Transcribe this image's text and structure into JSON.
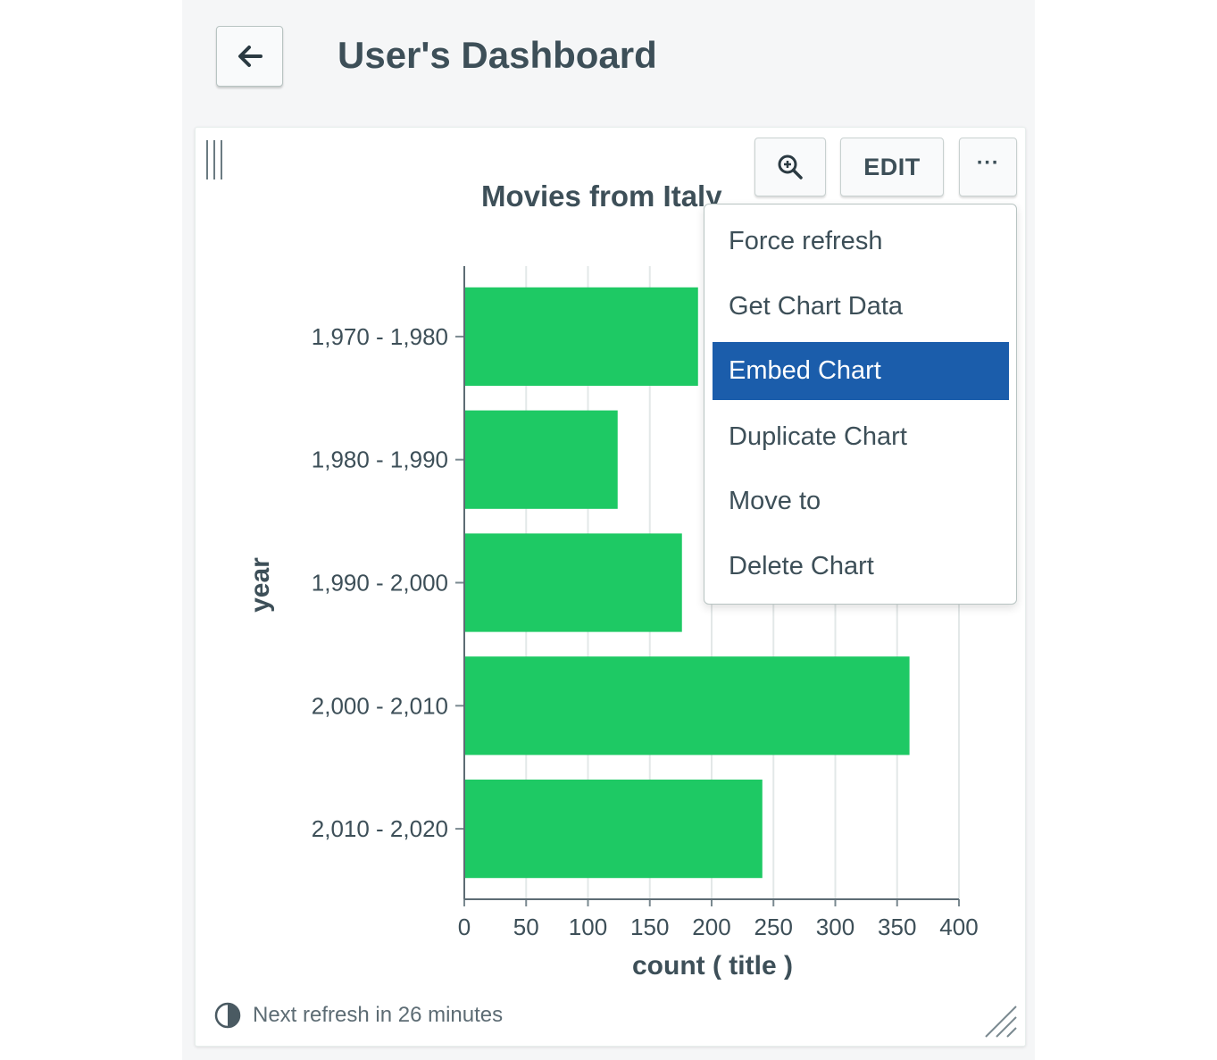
{
  "header": {
    "title": "User's Dashboard"
  },
  "card": {
    "edit_label": "EDIT",
    "more_label": "···",
    "footer_text": "Next refresh in 26 minutes"
  },
  "menu": {
    "items": [
      {
        "label": "Force refresh",
        "active": false
      },
      {
        "label": "Get Chart Data",
        "active": false
      },
      {
        "label": "Embed Chart",
        "active": true
      },
      {
        "label": "Duplicate Chart",
        "active": false
      },
      {
        "label": "Move to",
        "active": false
      },
      {
        "label": "Delete Chart",
        "active": false
      }
    ]
  },
  "colors": {
    "bar": "#1ec964",
    "menu_active": "#1b5dab",
    "text": "#3d4f58"
  },
  "chart_data": {
    "type": "bar",
    "orientation": "horizontal",
    "title": "Movies from Italy",
    "xlabel": "count ( title )",
    "ylabel": "year",
    "categories": [
      "1,970 - 1,980",
      "1,980 - 1,990",
      "1,990 - 2,000",
      "2,000 - 2,010",
      "2,010 - 2,020"
    ],
    "values": [
      189,
      124,
      176,
      360,
      241
    ],
    "xlim": [
      0,
      400
    ],
    "xticks": [
      "0",
      "50",
      "100",
      "150",
      "200",
      "250",
      "300",
      "350",
      "400"
    ],
    "grid": true
  }
}
